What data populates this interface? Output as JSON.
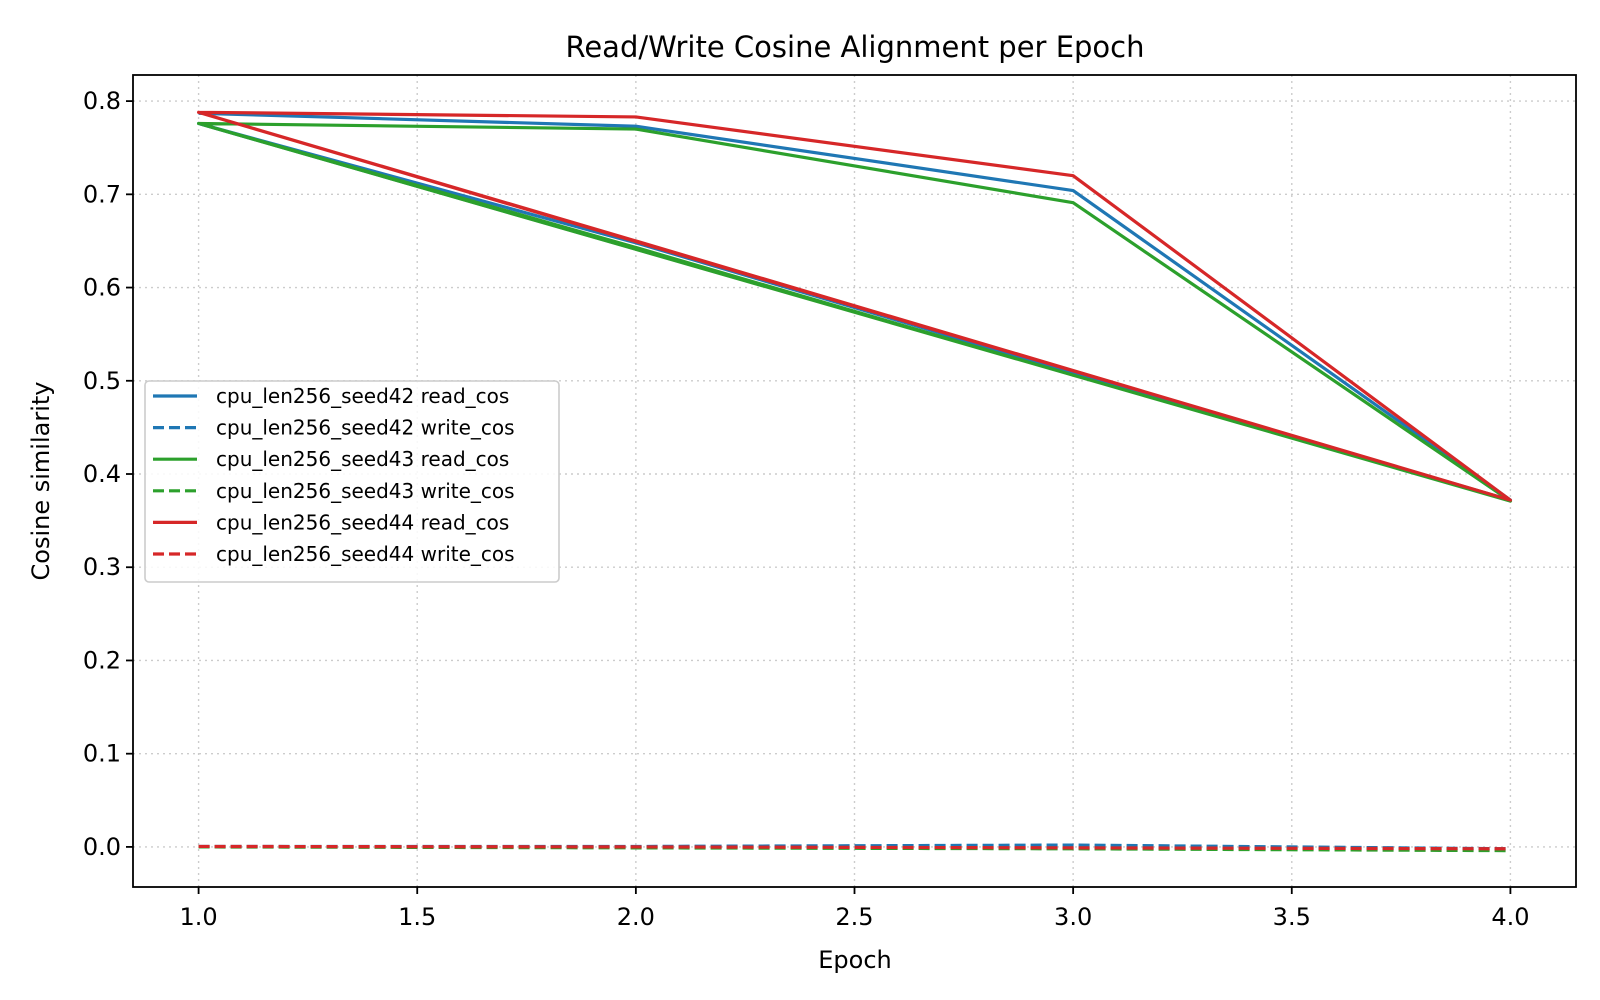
{
  "chart_data": {
    "type": "line",
    "title": "Read/Write Cosine Alignment per Epoch",
    "xlabel": "Epoch",
    "ylabel": "Cosine similarity",
    "xlim": [
      0.85,
      4.15
    ],
    "ylim": [
      -0.043,
      0.828
    ],
    "xticks": [
      1.0,
      1.5,
      2.0,
      2.5,
      3.0,
      3.5,
      4.0
    ],
    "xtick_labels": [
      "1.0",
      "1.5",
      "2.0",
      "2.5",
      "3.0",
      "3.5",
      "4.0"
    ],
    "yticks": [
      0.0,
      0.1,
      0.2,
      0.3,
      0.4,
      0.5,
      0.6,
      0.7,
      0.8
    ],
    "ytick_labels": [
      "0.0",
      "0.1",
      "0.2",
      "0.3",
      "0.4",
      "0.5",
      "0.6",
      "0.7",
      "0.8"
    ],
    "grid": true,
    "legend_position": "center-left",
    "series": [
      {
        "name": "cpu_len256_seed42 read_cos",
        "color": "#1f77b4",
        "linestyle": "solid",
        "x": [
          1.0,
          2.0,
          3.0,
          4.0,
          1.0,
          2.0,
          3.0,
          4.0
        ],
        "y": [
          0.787,
          0.773,
          0.704,
          0.372,
          0.776,
          0.648,
          0.509,
          0.372
        ]
      },
      {
        "name": "cpu_len256_seed42 write_cos",
        "color": "#1f77b4",
        "linestyle": "dashed",
        "x": [
          1.0,
          2.0,
          3.0,
          4.0
        ],
        "y": [
          0.0005,
          0.0005,
          0.002,
          -0.002
        ]
      },
      {
        "name": "cpu_len256_seed43 read_cos",
        "color": "#2ca02c",
        "linestyle": "solid",
        "x": [
          1.0,
          2.0,
          3.0,
          4.0,
          1.0,
          2.0,
          3.0,
          4.0
        ],
        "y": [
          0.776,
          0.77,
          0.691,
          0.371,
          0.776,
          0.643,
          0.506,
          0.371
        ]
      },
      {
        "name": "cpu_len256_seed43 write_cos",
        "color": "#2ca02c",
        "linestyle": "dashed",
        "x": [
          1.0,
          2.0,
          3.0,
          4.0
        ],
        "y": [
          0.0,
          -0.001,
          -0.002,
          -0.004
        ]
      },
      {
        "name": "cpu_len256_seed44 read_cos",
        "color": "#d62728",
        "linestyle": "solid",
        "x": [
          1.0,
          2.0,
          3.0,
          4.0,
          1.0,
          2.0,
          3.0,
          4.0
        ],
        "y": [
          0.788,
          0.783,
          0.72,
          0.372,
          0.788,
          0.65,
          0.511,
          0.372
        ]
      },
      {
        "name": "cpu_len256_seed44 write_cos",
        "color": "#d62728",
        "linestyle": "dashed",
        "x": [
          1.0,
          2.0,
          3.0,
          4.0
        ],
        "y": [
          0.0005,
          0.0,
          -0.001,
          -0.002
        ]
      }
    ]
  }
}
